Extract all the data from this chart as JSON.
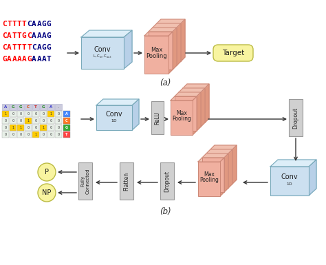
{
  "bg_color": "#ffffff",
  "label_a": "(a)",
  "label_b": "(b)",
  "seq_a": [
    {
      "red": "CTTTT",
      "blue": "CAAGG"
    },
    {
      "red": "CATTGC",
      "blue": "AAAG"
    },
    {
      "red": "CATTTT",
      "blue": "CAGG"
    },
    {
      "red": "GAAAAG",
      "blue": "AAAT"
    }
  ],
  "header_b": [
    "A",
    "G",
    "G",
    "C",
    "T",
    "G",
    "A",
    "."
  ],
  "header_colors_b": [
    "#3333cc",
    "#228b22",
    "#228b22",
    "#dd4400",
    "#cc2222",
    "#228b22",
    "#3333cc",
    "#888888"
  ],
  "matrix_b": [
    [
      1,
      0,
      0,
      0,
      0,
      0,
      1,
      0
    ],
    [
      0,
      0,
      0,
      1,
      0,
      0,
      0,
      0
    ],
    [
      0,
      1,
      1,
      0,
      0,
      1,
      0,
      0
    ],
    [
      0,
      0,
      0,
      0,
      1,
      0,
      0,
      0
    ]
  ],
  "side_labels_b": [
    "A",
    "C",
    "G",
    "T"
  ],
  "side_colors_b": [
    "#4488ff",
    "#ff7722",
    "#33aa33",
    "#ff4444"
  ],
  "conv_fc": "#cce0f0",
  "conv_ec": "#7aaabb",
  "mp_fc": "#f0b0a0",
  "mp_ec": "#cc8877",
  "gray_fc": "#d0d0d0",
  "gray_ec": "#999999",
  "yellow_fc": "#f8f4a0",
  "yellow_ec": "#bbbb44",
  "arrow_color": "#333333"
}
